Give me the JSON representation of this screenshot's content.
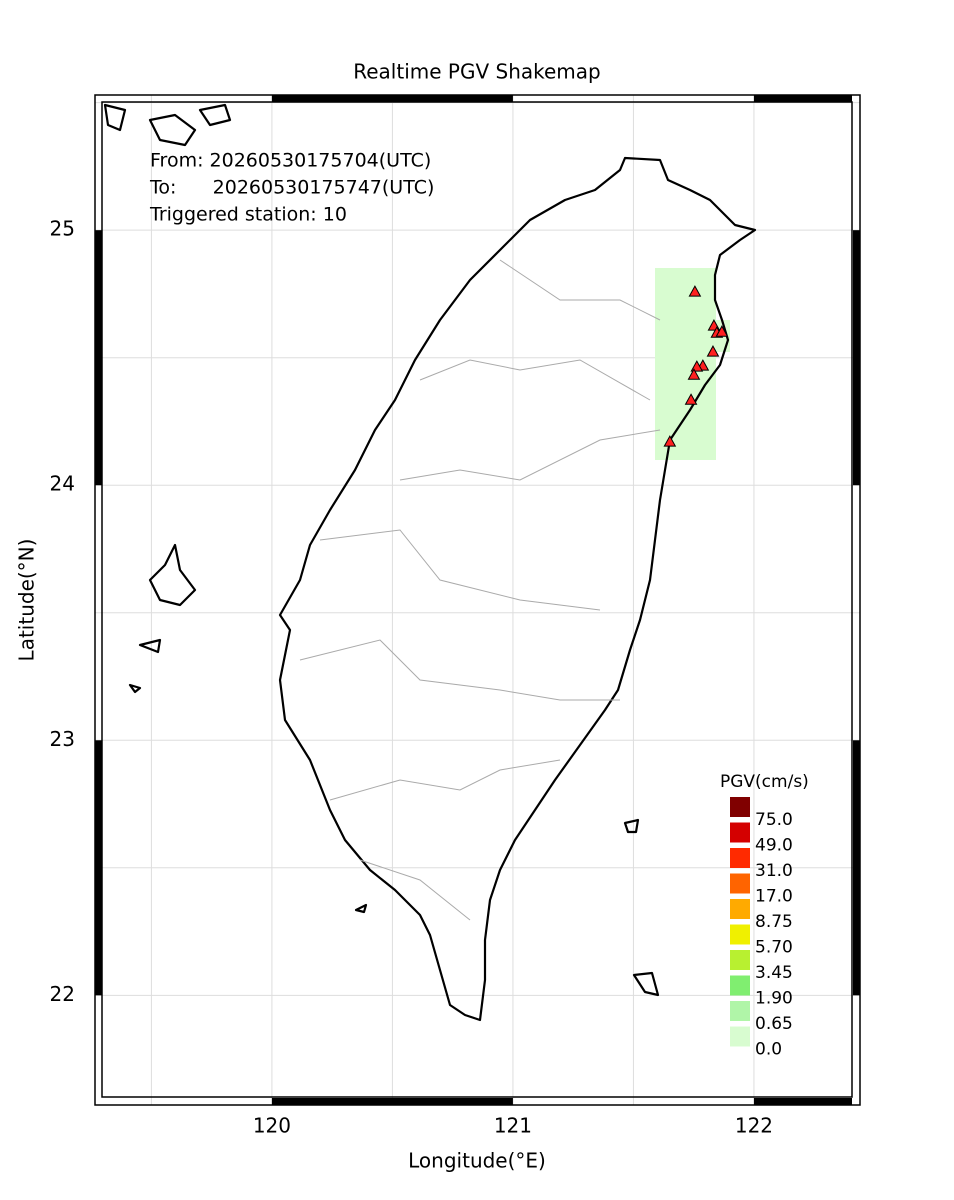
{
  "map": {
    "title": "Realtime PGV Shakemap",
    "info": [
      "From: 20260530175704(UTC)",
      "To:      20260530175747(UTC)",
      "Triggered station: 10"
    ],
    "x_label": "Longitude(°E)",
    "y_label": "Latitude(°N)",
    "xlim": [
      119.266,
      122.44
    ],
    "ylim": [
      21.57,
      25.53
    ],
    "xticks": [
      120,
      121,
      122
    ],
    "yticks": [
      22,
      23,
      24,
      25
    ],
    "grid": true,
    "stations": {
      "color": "#ff2020",
      "lon": [
        121.755,
        121.834,
        121.846,
        121.867,
        121.83,
        121.788,
        121.763,
        121.751,
        121.739,
        121.651
      ],
      "lat": [
        24.757,
        24.624,
        24.596,
        24.6,
        24.522,
        24.467,
        24.463,
        24.431,
        24.333,
        24.169
      ]
    },
    "legend": {
      "title": "PGV(cm/s)",
      "items": [
        {
          "label": "75.0",
          "color": "#800000"
        },
        {
          "label": "49.0",
          "color": "#d40000"
        },
        {
          "label": "31.0",
          "color": "#ff2a00"
        },
        {
          "label": "17.0",
          "color": "#ff6400"
        },
        {
          "label": "8.75",
          "color": "#ffaa00"
        },
        {
          "label": "5.70",
          "color": "#f0f000"
        },
        {
          "label": "3.45",
          "color": "#b8f030"
        },
        {
          "label": "1.90",
          "color": "#80ee70"
        },
        {
          "label": "0.65",
          "color": "#b0f5a8"
        },
        {
          "label": "0.0",
          "color": "#d8fcd0"
        }
      ]
    }
  }
}
